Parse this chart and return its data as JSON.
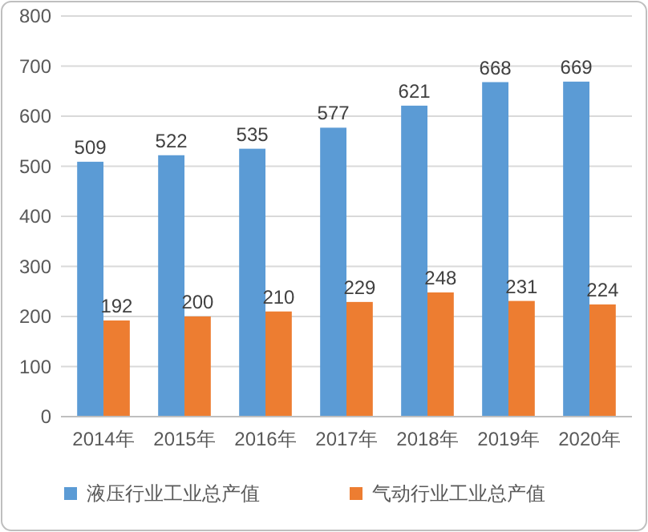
{
  "chart_data": {
    "type": "bar",
    "categories": [
      "2014年",
      "2015年",
      "2016年",
      "2017年",
      "2018年",
      "2019年",
      "2020年"
    ],
    "series": [
      {
        "name": "液压行业工业总产值",
        "color": "#5b9bd5",
        "values": [
          509,
          522,
          535,
          577,
          621,
          668,
          669
        ]
      },
      {
        "name": "气动行业工业总产值",
        "color": "#ed7d31",
        "values": [
          192,
          200,
          210,
          229,
          248,
          231,
          224
        ]
      }
    ],
    "ylim": [
      0,
      800
    ],
    "yticks": [
      0,
      100,
      200,
      300,
      400,
      500,
      600,
      700,
      800
    ],
    "grid": "y",
    "legend": "bottom",
    "data_labels": true
  }
}
